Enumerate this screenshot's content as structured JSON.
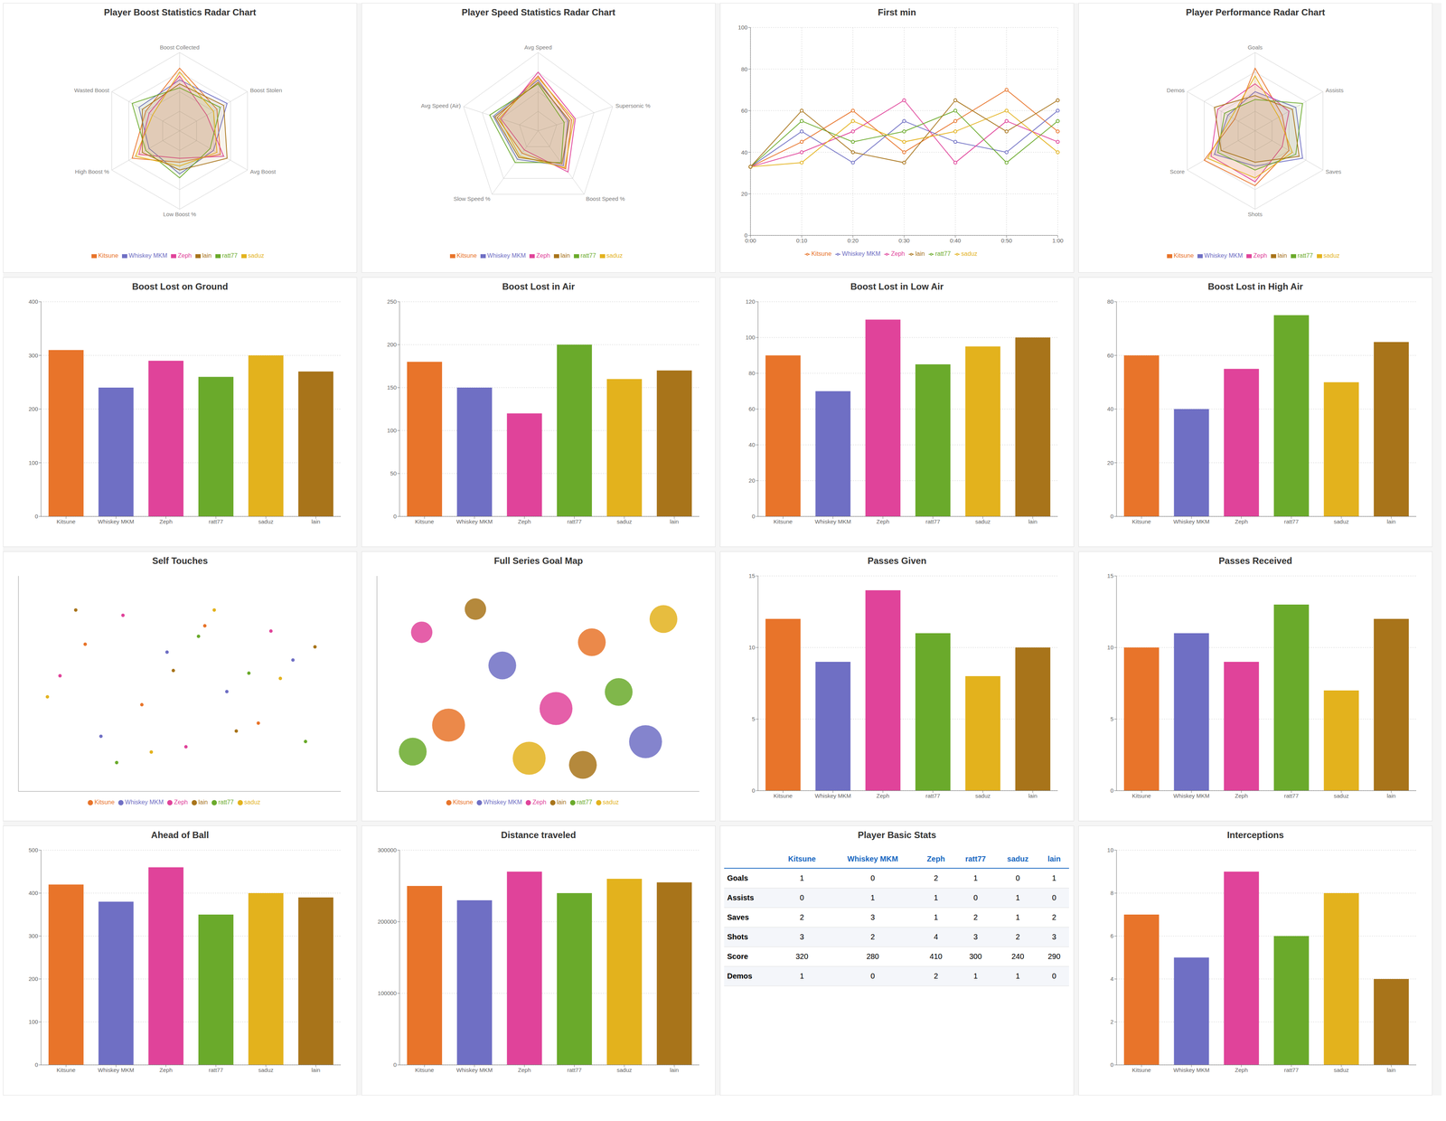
{
  "chart_data": [
    {
      "type": "radar",
      "title": "Player Boost Statistics Radar Chart",
      "categories": [
        "Boost Collected",
        "Boost Stolen",
        "Avg Boost",
        "Low Boost %",
        "High Boost %",
        "Wasted Boost"
      ],
      "ylim": [
        0,
        100
      ],
      "legend": "bottom",
      "series": [
        {
          "name": "Kitsune",
          "color": "#e8742a",
          "values": [
            80,
            55,
            60,
            40,
            70,
            50
          ]
        },
        {
          "name": "Whiskey MKM",
          "color": "#6f6fc4",
          "values": [
            65,
            70,
            50,
            55,
            45,
            60
          ]
        },
        {
          "name": "Zeph",
          "color": "#e0439a",
          "values": [
            70,
            40,
            65,
            35,
            60,
            45
          ]
        },
        {
          "name": "ratt77",
          "color": "#6aaa2b",
          "values": [
            55,
            60,
            45,
            60,
            50,
            70
          ]
        },
        {
          "name": "saduz",
          "color": "#e3b21d",
          "values": [
            75,
            50,
            55,
            45,
            65,
            40
          ]
        },
        {
          "name": "lain",
          "color": "#a8741a",
          "values": [
            60,
            65,
            70,
            50,
            55,
            55
          ]
        }
      ]
    },
    {
      "type": "radar",
      "title": "Player Speed Statistics Radar Chart",
      "categories": [
        "Avg Speed",
        "Supersonic %",
        "Boost Speed %",
        "Slow Speed %",
        "Avg Speed (Air)"
      ],
      "ylim": [
        0,
        100
      ],
      "legend": "bottom",
      "series": [
        {
          "name": "Kitsune",
          "color": "#e8742a",
          "values": [
            70,
            45,
            60,
            35,
            55
          ]
        },
        {
          "name": "Whiskey MKM",
          "color": "#6f6fc4",
          "values": [
            65,
            40,
            55,
            45,
            60
          ]
        },
        {
          "name": "Zeph",
          "color": "#e0439a",
          "values": [
            75,
            50,
            65,
            30,
            50
          ]
        },
        {
          "name": "ratt77",
          "color": "#6aaa2b",
          "values": [
            60,
            35,
            50,
            50,
            65
          ]
        },
        {
          "name": "saduz",
          "color": "#e3b21d",
          "values": [
            68,
            48,
            58,
            40,
            52
          ]
        },
        {
          "name": "lain",
          "color": "#a8741a",
          "values": [
            62,
            42,
            52,
            42,
            58
          ]
        }
      ]
    },
    {
      "type": "line",
      "title": "First min",
      "categories": [
        "0:00",
        "0:10",
        "0:20",
        "0:30",
        "0:40",
        "0:50",
        "1:00"
      ],
      "ylim": [
        0,
        100
      ],
      "yticks": [
        0,
        20,
        40,
        60,
        80,
        100
      ],
      "grid": true,
      "legend": "bottom",
      "series": [
        {
          "name": "Kitsune",
          "color": "#e8742a",
          "values": [
            33,
            45,
            60,
            40,
            55,
            70,
            50
          ]
        },
        {
          "name": "Whiskey MKM",
          "color": "#6f6fc4",
          "values": [
            33,
            50,
            35,
            55,
            45,
            40,
            60
          ]
        },
        {
          "name": "Zeph",
          "color": "#e0439a",
          "values": [
            33,
            40,
            50,
            65,
            35,
            55,
            45
          ]
        },
        {
          "name": "ratt77",
          "color": "#6aaa2b",
          "values": [
            33,
            55,
            45,
            50,
            60,
            35,
            55
          ]
        },
        {
          "name": "saduz",
          "color": "#e3b21d",
          "values": [
            33,
            35,
            55,
            45,
            50,
            60,
            40
          ]
        },
        {
          "name": "lain",
          "color": "#a8741a",
          "values": [
            33,
            60,
            40,
            35,
            65,
            50,
            65
          ]
        }
      ]
    },
    {
      "type": "radar",
      "title": "Player Performance Radar Chart",
      "categories": [
        "Goals",
        "Assists",
        "Saves",
        "Shots",
        "Score",
        "Demos"
      ],
      "ylim": [
        0,
        100
      ],
      "legend": "bottom",
      "series": [
        {
          "name": "Kitsune",
          "color": "#e8742a",
          "values": [
            80,
            40,
            50,
            70,
            75,
            30
          ]
        },
        {
          "name": "Whiskey MKM",
          "color": "#6f6fc4",
          "values": [
            50,
            60,
            70,
            45,
            60,
            40
          ]
        },
        {
          "name": "Zeph",
          "color": "#e0439a",
          "values": [
            60,
            50,
            40,
            65,
            65,
            55
          ]
        },
        {
          "name": "ratt77",
          "color": "#6aaa2b",
          "values": [
            40,
            70,
            60,
            50,
            55,
            45
          ]
        },
        {
          "name": "saduz",
          "color": "#e3b21d",
          "values": [
            70,
            35,
            55,
            60,
            70,
            35
          ]
        },
        {
          "name": "lain",
          "color": "#a8741a",
          "values": [
            45,
            55,
            65,
            40,
            50,
            60
          ]
        }
      ]
    },
    {
      "type": "bar",
      "title": "Boost Lost on Ground",
      "categories": [
        "Kitsune",
        "Whiskey MKM",
        "Zeph",
        "ratt77",
        "saduz",
        "lain"
      ],
      "values": [
        310,
        240,
        290,
        260,
        300,
        270
      ],
      "colors": [
        "#e8742a",
        "#6f6fc4",
        "#e0439a",
        "#6aaa2b",
        "#e3b21d",
        "#a8741a"
      ],
      "ylim": [
        0,
        400
      ],
      "yticks": [
        0,
        100,
        200,
        300,
        400
      ],
      "grid": true
    },
    {
      "type": "bar",
      "title": "Boost Lost in Air",
      "categories": [
        "Kitsune",
        "Whiskey MKM",
        "Zeph",
        "ratt77",
        "saduz",
        "lain"
      ],
      "values": [
        180,
        150,
        120,
        200,
        160,
        170
      ],
      "colors": [
        "#e8742a",
        "#6f6fc4",
        "#e0439a",
        "#6aaa2b",
        "#e3b21d",
        "#a8741a"
      ],
      "ylim": [
        0,
        250
      ],
      "yticks": [
        0,
        50,
        100,
        150,
        200,
        250
      ],
      "grid": true
    },
    {
      "type": "bar",
      "title": "Boost Lost in Low Air",
      "categories": [
        "Kitsune",
        "Whiskey MKM",
        "Zeph",
        "ratt77",
        "saduz",
        "lain"
      ],
      "values": [
        90,
        70,
        110,
        85,
        95,
        100
      ],
      "colors": [
        "#e8742a",
        "#6f6fc4",
        "#e0439a",
        "#6aaa2b",
        "#e3b21d",
        "#a8741a"
      ],
      "ylim": [
        0,
        120
      ],
      "yticks": [
        0,
        20,
        40,
        60,
        80,
        100,
        120
      ],
      "grid": true
    },
    {
      "type": "bar",
      "title": "Boost Lost in High Air",
      "categories": [
        "Kitsune",
        "Whiskey MKM",
        "Zeph",
        "ratt77",
        "saduz",
        "lain"
      ],
      "values": [
        60,
        40,
        55,
        75,
        50,
        65
      ],
      "colors": [
        "#e8742a",
        "#6f6fc4",
        "#e0439a",
        "#6aaa2b",
        "#e3b21d",
        "#a8741a"
      ],
      "ylim": [
        0,
        80
      ],
      "yticks": [
        0,
        20,
        40,
        60,
        80
      ],
      "grid": true
    },
    {
      "type": "scatter",
      "title": "Self Touches",
      "xlim": [
        -5120,
        5120
      ],
      "ylim": [
        -4096,
        4096
      ],
      "tick_labels": false,
      "legend": "bottom",
      "series": [
        {
          "name": "Kitsune",
          "color": "#e8742a",
          "x": [
            -3000,
            -1200,
            800,
            2500
          ],
          "y": [
            1500,
            -800,
            2200,
            -1500
          ]
        },
        {
          "name": "Whiskey MKM",
          "color": "#6f6fc4",
          "x": [
            -2500,
            -400,
            1500,
            3600
          ],
          "y": [
            -2000,
            1200,
            -300,
            900
          ]
        },
        {
          "name": "Zeph",
          "color": "#e0439a",
          "x": [
            -3800,
            -1800,
            200,
            2900
          ],
          "y": [
            300,
            2600,
            -2400,
            2000
          ]
        },
        {
          "name": "ratt77",
          "color": "#6aaa2b",
          "x": [
            -2000,
            600,
            2200,
            4000
          ],
          "y": [
            -3000,
            1800,
            400,
            -2200
          ]
        },
        {
          "name": "saduz",
          "color": "#e3b21d",
          "x": [
            -4200,
            -900,
            1100,
            3200
          ],
          "y": [
            -500,
            -2600,
            2800,
            200
          ]
        },
        {
          "name": "lain",
          "color": "#a8741a",
          "x": [
            -3300,
            -200,
            1800,
            4300
          ],
          "y": [
            2800,
            500,
            -1800,
            1400
          ]
        }
      ]
    },
    {
      "type": "bubble",
      "title": "Full Series Goal Map",
      "xlim": [
        -900,
        900
      ],
      "ylim": [
        0,
        650
      ],
      "tick_labels": false,
      "legend": "bottom",
      "series": [
        {
          "name": "Kitsune",
          "color": "#e8742a",
          "x": [
            -500,
            300
          ],
          "y": [
            200,
            450
          ],
          "size": [
            3,
            2
          ]
        },
        {
          "name": "Whiskey MKM",
          "color": "#6f6fc4",
          "x": [
            -200,
            600
          ],
          "y": [
            380,
            150
          ],
          "size": [
            2,
            3
          ]
        },
        {
          "name": "Zeph",
          "color": "#e0439a",
          "x": [
            100,
            -650
          ],
          "y": [
            250,
            480
          ],
          "size": [
            3,
            1
          ]
        },
        {
          "name": "ratt77",
          "color": "#6aaa2b",
          "x": [
            -700,
            450
          ],
          "y": [
            120,
            300
          ],
          "size": [
            2,
            2
          ]
        },
        {
          "name": "saduz",
          "color": "#e3b21d",
          "x": [
            700,
            -50
          ],
          "y": [
            520,
            100
          ],
          "size": [
            2,
            3
          ]
        },
        {
          "name": "lain",
          "color": "#a8741a",
          "x": [
            -350,
            250
          ],
          "y": [
            550,
            80
          ],
          "size": [
            1,
            2
          ]
        }
      ]
    },
    {
      "type": "bar",
      "title": "Passes Given",
      "categories": [
        "Kitsune",
        "Whiskey MKM",
        "Zeph",
        "ratt77",
        "saduz",
        "lain"
      ],
      "values": [
        12,
        9,
        14,
        11,
        8,
        10
      ],
      "colors": [
        "#e8742a",
        "#6f6fc4",
        "#e0439a",
        "#6aaa2b",
        "#e3b21d",
        "#a8741a"
      ],
      "ylim": [
        0,
        15
      ],
      "yticks": [
        0,
        5,
        10,
        15
      ],
      "grid": true
    },
    {
      "type": "bar",
      "title": "Passes Received",
      "categories": [
        "Kitsune",
        "Whiskey MKM",
        "Zeph",
        "ratt77",
        "saduz",
        "lain"
      ],
      "values": [
        10,
        11,
        9,
        13,
        7,
        12
      ],
      "colors": [
        "#e8742a",
        "#6f6fc4",
        "#e0439a",
        "#6aaa2b",
        "#e3b21d",
        "#a8741a"
      ],
      "ylim": [
        0,
        15
      ],
      "yticks": [
        0,
        5,
        10,
        15
      ],
      "grid": true
    },
    {
      "type": "bar",
      "title": "Ahead of Ball",
      "categories": [
        "Kitsune",
        "Whiskey MKM",
        "Zeph",
        "ratt77",
        "saduz",
        "lain"
      ],
      "values": [
        420,
        380,
        460,
        350,
        400,
        390
      ],
      "colors": [
        "#e8742a",
        "#6f6fc4",
        "#e0439a",
        "#6aaa2b",
        "#e3b21d",
        "#a8741a"
      ],
      "ylim": [
        0,
        500
      ],
      "yticks": [
        0,
        100,
        200,
        300,
        400,
        500
      ],
      "grid": true
    },
    {
      "type": "bar",
      "title": "Distance traveled",
      "categories": [
        "Kitsune",
        "Whiskey MKM",
        "Zeph",
        "ratt77",
        "saduz",
        "lain"
      ],
      "values": [
        250000,
        230000,
        270000,
        240000,
        260000,
        255000
      ],
      "colors": [
        "#e8742a",
        "#6f6fc4",
        "#e0439a",
        "#6aaa2b",
        "#e3b21d",
        "#a8741a"
      ],
      "ylim": [
        0,
        300000
      ],
      "yticks": [
        0,
        100000,
        200000,
        300000
      ],
      "grid": true
    },
    {
      "type": "table",
      "title": "Player Basic Stats",
      "columns": [
        "",
        "Kitsune",
        "Whiskey MKM",
        "Zeph",
        "ratt77",
        "saduz",
        "lain"
      ],
      "rows": [
        [
          "Goals",
          1,
          0,
          2,
          1,
          0,
          1
        ],
        [
          "Assists",
          0,
          1,
          1,
          0,
          1,
          0
        ],
        [
          "Saves",
          2,
          3,
          1,
          2,
          1,
          2
        ],
        [
          "Shots",
          3,
          2,
          4,
          3,
          2,
          3
        ],
        [
          "Score",
          320,
          280,
          410,
          300,
          240,
          290
        ],
        [
          "Demos",
          1,
          0,
          2,
          1,
          1,
          0
        ]
      ]
    },
    {
      "type": "bar",
      "title": "Interceptions",
      "categories": [
        "Kitsune",
        "Whiskey MKM",
        "Zeph",
        "ratt77",
        "saduz",
        "lain"
      ],
      "values": [
        7,
        5,
        9,
        6,
        8,
        4
      ],
      "colors": [
        "#e8742a",
        "#6f6fc4",
        "#e0439a",
        "#6aaa2b",
        "#e3b21d",
        "#a8741a"
      ],
      "ylim": [
        0,
        10
      ],
      "yticks": [
        0,
        2,
        4,
        6,
        8,
        10
      ],
      "grid": true
    }
  ]
}
